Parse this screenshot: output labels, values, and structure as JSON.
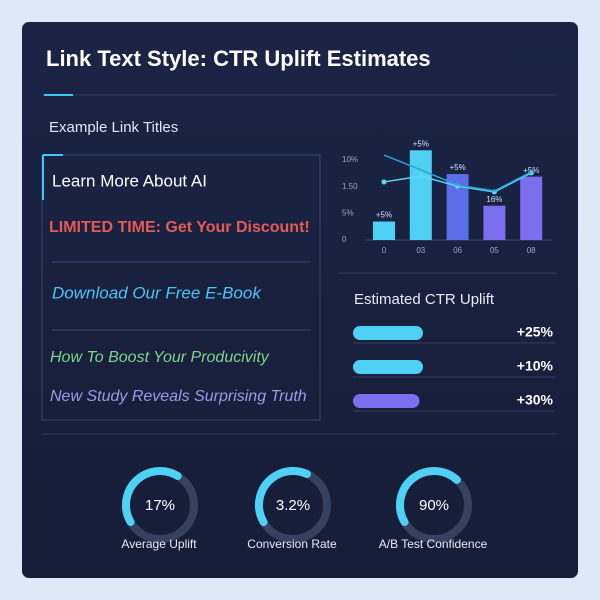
{
  "header": {
    "title": "Link Text Style: CTR Uplift Estimates"
  },
  "links": {
    "title": "Example Link Titles",
    "items": [
      "Learn More About AI",
      "LIMITED TIME: Get Your Discount!",
      "Download Our Free E-Book",
      "How To Boost Your Producivity",
      "New Study Reveals Surprising Truth"
    ]
  },
  "mini_chart": {
    "ytick_labels": [
      "10%",
      "1.50",
      "5%",
      "0"
    ],
    "categories": [
      "0",
      "03",
      "06",
      "05",
      "08"
    ],
    "ylim": [
      0,
      18
    ],
    "bars": [
      3.5,
      17,
      12.5,
      6.5,
      12
    ],
    "bar_colors": [
      "#4fd0f5",
      "#4fd0f5",
      "#5b6ee8",
      "#7b6ff0",
      "#7b6ff0"
    ],
    "bar_labels": [
      "+5%",
      "+5%",
      "+5%",
      "16%",
      "+5%"
    ],
    "lines": [
      [
        11,
        12.1,
        10.2,
        9.1,
        12.7
      ],
      [
        16.1,
        13.3,
        10.4,
        9.3,
        12.9
      ]
    ]
  },
  "uplift": {
    "title": "Estimated CTR Uplift",
    "items": [
      {
        "label": "+25%",
        "bar": 40,
        "color": "#4fd0f5"
      },
      {
        "label": "+10%",
        "bar": 40,
        "color": "#4fd0f5"
      },
      {
        "label": "+30%",
        "bar": 38,
        "color": "#7b6ff0"
      }
    ]
  },
  "gauges": [
    {
      "text": "17%",
      "caption": "Average Uplift",
      "arc": 42
    },
    {
      "text": "3.2%",
      "caption": "Conversion Rate",
      "arc": 40
    },
    {
      "text": "90%",
      "caption": "A/B Test Confidence",
      "arc": 45
    }
  ]
}
